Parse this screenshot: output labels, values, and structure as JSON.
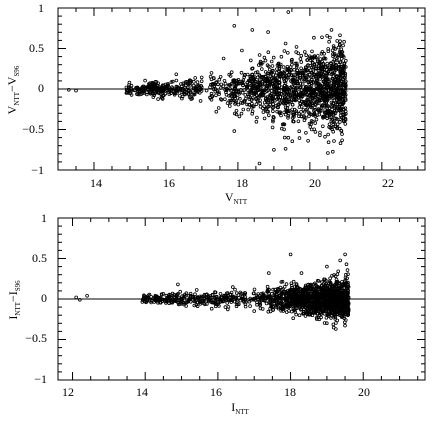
{
  "chart_data": [
    {
      "type": "scatter",
      "title": "",
      "xlabel_main": "V",
      "xlabel_sub": "NTT",
      "ylabel_main": "V",
      "ylabel_sub1": "NTT",
      "ylabel_dash": "−V",
      "ylabel_sub2": "S96",
      "xlim": [
        13,
        23.2
      ],
      "ylim": [
        -1,
        1
      ],
      "xticks": [
        14,
        16,
        18,
        20,
        22
      ],
      "yticks": [
        -1,
        -0.5,
        0,
        0.5,
        1
      ],
      "xtick_labels": [
        "14",
        "16",
        "18",
        "20",
        "22"
      ],
      "ytick_labels": [
        "−1",
        "−0.5",
        "0",
        "0.5",
        "1"
      ],
      "reference_line_y": 0,
      "marker": "open-circle",
      "approximate_distribution": {
        "sparse_points": [
          [
            13.3,
            -0.01
          ],
          [
            13.5,
            -0.02
          ],
          [
            14.9,
            0.02
          ],
          [
            14.9,
            -0.05
          ]
        ],
        "bright_range": [
          14.9,
          17.0
        ],
        "bright_scatter": 0.05,
        "faint_range": [
          17.0,
          21.0
        ],
        "faint_scatter": 0.25,
        "faint_cutoff": 21.0
      },
      "outliers": [
        [
          17.9,
          0.78
        ],
        [
          18.4,
          0.73
        ],
        [
          19.4,
          0.95
        ],
        [
          20.6,
          0.73
        ],
        [
          17.4,
          -0.28
        ],
        [
          17.9,
          -0.52
        ],
        [
          18.6,
          -0.92
        ],
        [
          19.0,
          -0.75
        ],
        [
          20.5,
          -0.79
        ],
        [
          19.3,
          -0.6
        ],
        [
          20.8,
          0.42
        ]
      ]
    },
    {
      "type": "scatter",
      "title": "",
      "xlabel_main": "I",
      "xlabel_sub": "NTT",
      "ylabel_main": "I",
      "ylabel_sub1": "NTT",
      "ylabel_dash": "−I",
      "ylabel_sub2": "S96",
      "xlim": [
        11.6,
        21.7
      ],
      "ylim": [
        -1,
        1
      ],
      "xticks": [
        12,
        14,
        16,
        18,
        20
      ],
      "yticks": [
        -1,
        -0.5,
        0,
        0.5,
        1
      ],
      "xtick_labels": [
        "12",
        "14",
        "16",
        "18",
        "20"
      ],
      "ytick_labels": [
        "−1",
        "−0.5",
        "0",
        "0.5",
        "1"
      ],
      "reference_line_y": 0,
      "marker": "open-circle",
      "approximate_distribution": {
        "sparse_points": [
          [
            12.1,
            0.02
          ],
          [
            12.2,
            -0.01
          ],
          [
            12.4,
            0.04
          ]
        ],
        "bright_range": [
          13.9,
          16.8
        ],
        "bright_scatter": 0.04,
        "faint_range": [
          16.8,
          19.6
        ],
        "faint_scatter": 0.12,
        "faint_cutoff": 19.6
      },
      "outliers": [
        [
          18.0,
          0.55
        ],
        [
          19.5,
          0.55
        ],
        [
          17.4,
          0.32
        ],
        [
          18.3,
          0.32
        ],
        [
          19.0,
          0.4
        ],
        [
          17.0,
          -0.15
        ],
        [
          18.6,
          -0.2
        ],
        [
          14.9,
          0.18
        ]
      ]
    }
  ]
}
